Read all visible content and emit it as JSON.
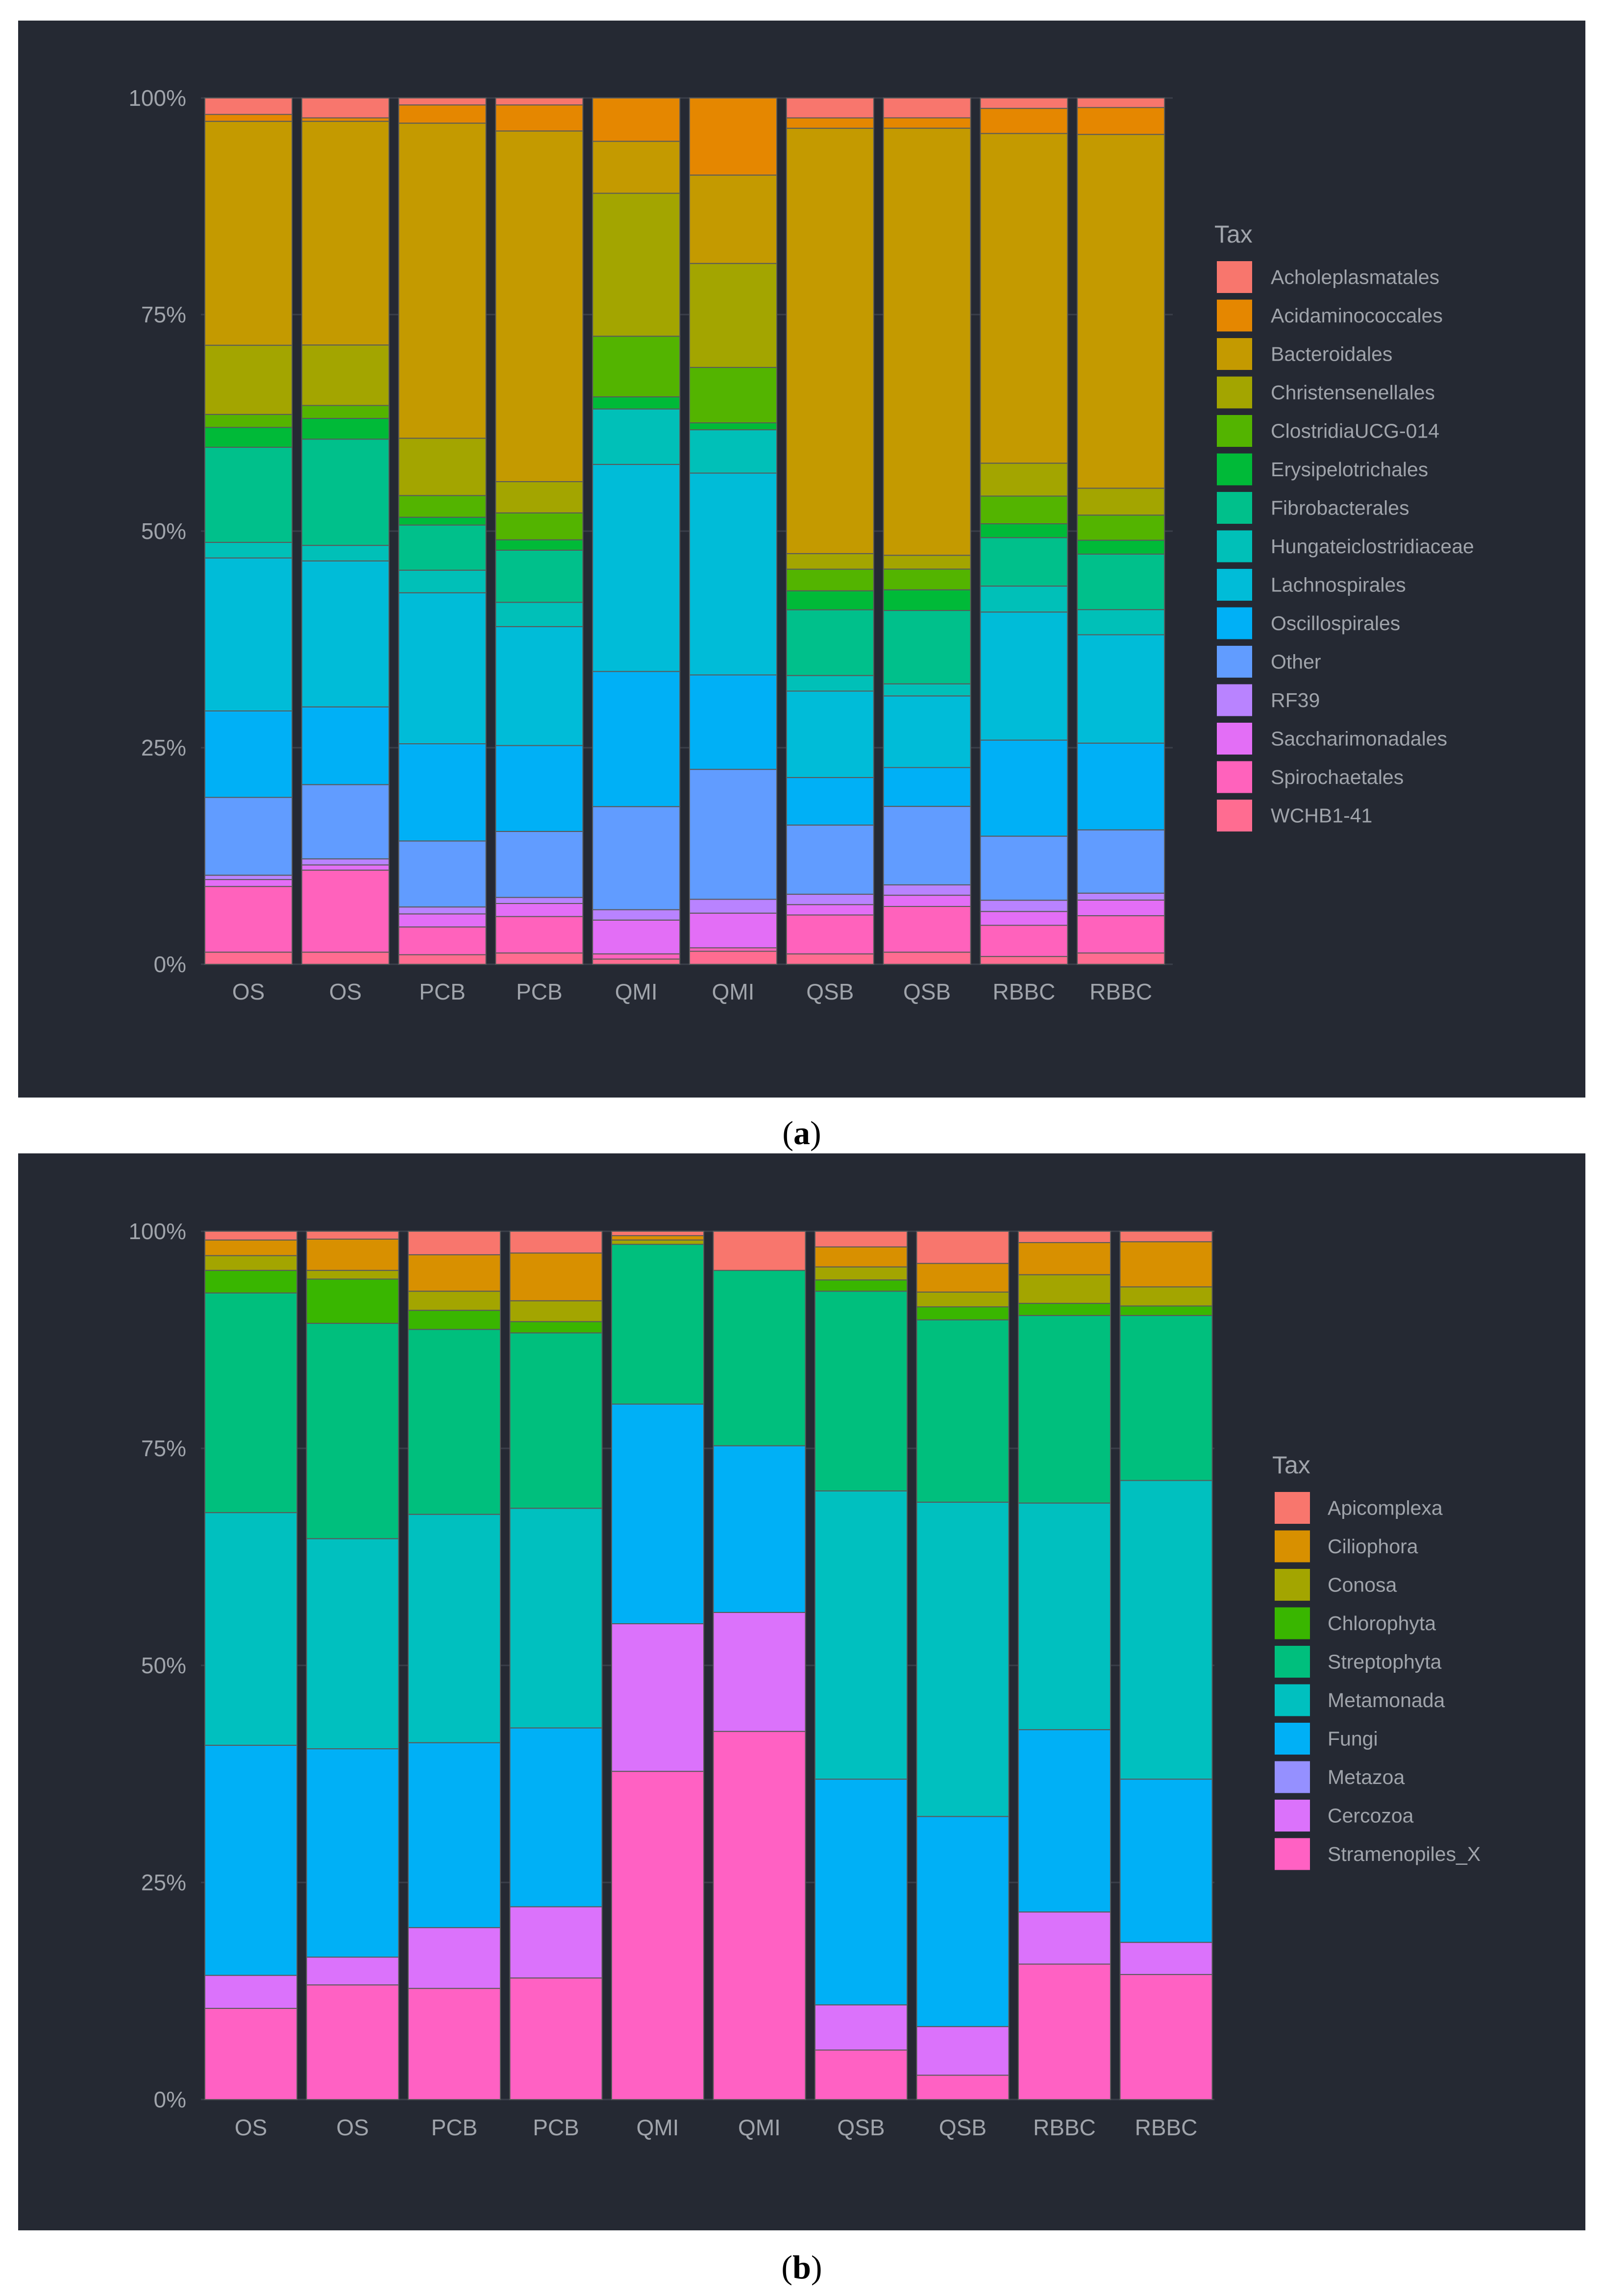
{
  "chart_data": [
    {
      "type": "bar",
      "stacked": true,
      "caption_open": "(",
      "caption_label": "a",
      "caption_close": ")",
      "categories": [
        "OS",
        "OS",
        "PCB",
        "PCB",
        "QMI",
        "QMI",
        "QSB",
        "QSB",
        "RBBC",
        "RBBC"
      ],
      "y_ticks": [
        "0%",
        "25%",
        "50%",
        "75%",
        "100%"
      ],
      "ylim": [
        0,
        100
      ],
      "legend_title": "Tax",
      "background": "#252933",
      "series": [
        {
          "name": "WCHB1-41",
          "color": "#FF6C91",
          "values": [
            1.4,
            1.4,
            1.1,
            1.3,
            0.6,
            1.5,
            1.2,
            1.4,
            0.9,
            1.3
          ]
        },
        {
          "name": "Spirochaetales",
          "color": "#FF62BC",
          "values": [
            7.6,
            9.5,
            3.2,
            4.2,
            0.6,
            0.4,
            4.5,
            5.3,
            3.6,
            4.3
          ]
        },
        {
          "name": "Saccharimonadales",
          "color": "#E36EF6",
          "values": [
            0.8,
            0.6,
            1.5,
            1.5,
            3.9,
            4.0,
            1.2,
            1.3,
            1.6,
            1.8
          ]
        },
        {
          "name": "RF39",
          "color": "#B983FF",
          "values": [
            0.5,
            0.7,
            0.8,
            0.7,
            1.2,
            1.6,
            1.2,
            1.2,
            1.3,
            0.8
          ]
        },
        {
          "name": "Other",
          "color": "#619CFF",
          "values": [
            9.0,
            8.6,
            7.6,
            7.6,
            11.9,
            15.0,
            8.0,
            9.1,
            7.4,
            7.3
          ]
        },
        {
          "name": "Oscillospirales",
          "color": "#00B0F6",
          "values": [
            10.0,
            9.0,
            11.2,
            9.9,
            15.6,
            10.9,
            5.5,
            4.5,
            11.1,
            10.0
          ]
        },
        {
          "name": "Lachnospirales",
          "color": "#00BCD8",
          "values": [
            17.7,
            16.9,
            17.4,
            13.7,
            23.9,
            23.3,
            10.0,
            8.3,
            14.8,
            12.5
          ]
        },
        {
          "name": "Hungateiclostridiaceae",
          "color": "#00C0B8",
          "values": [
            1.8,
            1.8,
            2.6,
            2.8,
            6.4,
            5.0,
            1.8,
            1.4,
            3.0,
            2.9
          ]
        },
        {
          "name": "Fibrobacterales",
          "color": "#00C08B",
          "values": [
            11.0,
            12.3,
            5.2,
            6.0,
            0,
            0,
            7.6,
            8.5,
            5.6,
            6.4
          ]
        },
        {
          "name": "Erysipelotrichales",
          "color": "#00BA38",
          "values": [
            2.3,
            2.4,
            0.9,
            1.2,
            1.4,
            0.8,
            2.2,
            2.4,
            1.6,
            1.6
          ]
        },
        {
          "name": "ClostridiaUCG-014",
          "color": "#53B400",
          "values": [
            1.5,
            1.5,
            2.5,
            3.1,
            7.0,
            6.4,
            2.5,
            2.4,
            3.2,
            2.9
          ]
        },
        {
          "name": "Christensenellales",
          "color": "#A3A500",
          "values": [
            8.0,
            7.0,
            6.6,
            3.6,
            16.5,
            12.0,
            1.8,
            1.6,
            3.8,
            3.1
          ]
        },
        {
          "name": "Bacteroidales",
          "color": "#C49A00",
          "values": [
            25.9,
            25.9,
            36.3,
            40.4,
            6.0,
            10.2,
            49.2,
            49.5,
            38.1,
            40.8
          ]
        },
        {
          "name": "Acidaminococcales",
          "color": "#E58700",
          "values": [
            0.8,
            0.4,
            2.1,
            3.0,
            5.0,
            8.9,
            1.2,
            1.2,
            2.9,
            3.1
          ]
        },
        {
          "name": "Acholeplasmatales",
          "color": "#F8766D",
          "values": [
            1.9,
            2.3,
            0.8,
            0.8,
            0,
            0,
            2.3,
            2.3,
            1.2,
            1.1
          ]
        }
      ]
    },
    {
      "type": "bar",
      "stacked": true,
      "caption_open": "(",
      "caption_label": "b",
      "caption_close": ")",
      "categories": [
        "OS",
        "OS",
        "PCB",
        "PCB",
        "QMI",
        "QMI",
        "QSB",
        "QSB",
        "RBBC",
        "RBBC"
      ],
      "y_ticks": [
        "0%",
        "25%",
        "50%",
        "75%",
        "100%"
      ],
      "ylim": [
        0,
        100
      ],
      "legend_title": "Tax",
      "background": "#252933",
      "series": [
        {
          "name": "Stramenopiles_X",
          "color": "#FF61C3",
          "values": [
            10.5,
            13.2,
            12.8,
            14.0,
            37.8,
            42.4,
            5.7,
            2.8,
            15.6,
            14.4
          ]
        },
        {
          "name": "Cercozoa",
          "color": "#DB72FB",
          "values": [
            3.8,
            3.2,
            7.0,
            8.2,
            17.0,
            13.7,
            5.2,
            5.6,
            6.0,
            3.7
          ]
        },
        {
          "name": "Metazoa",
          "color": "#9590FF",
          "values": [
            0,
            0,
            0,
            0,
            0,
            0,
            0,
            0,
            0,
            0
          ]
        },
        {
          "name": "Fungi",
          "color": "#00B0F6",
          "values": [
            26.5,
            24.0,
            21.3,
            20.6,
            25.3,
            19.2,
            26.0,
            24.2,
            21.0,
            18.8
          ]
        },
        {
          "name": "Metamonada",
          "color": "#00C0BF",
          "values": [
            26.8,
            24.2,
            26.3,
            25.3,
            0,
            0,
            33.2,
            36.2,
            26.1,
            34.4
          ]
        },
        {
          "name": "Streptophyta",
          "color": "#00BF7D",
          "values": [
            25.3,
            24.8,
            21.3,
            20.2,
            18.4,
            20.2,
            23.0,
            21.0,
            21.6,
            19.0
          ]
        },
        {
          "name": "Chlorophyta",
          "color": "#39B600",
          "values": [
            2.6,
            5.1,
            2.2,
            1.3,
            0,
            0,
            1.3,
            1.5,
            1.4,
            1.1
          ]
        },
        {
          "name": "Conosa",
          "color": "#A3A500",
          "values": [
            1.7,
            1.0,
            2.2,
            2.4,
            0.5,
            0,
            1.5,
            1.7,
            3.3,
            2.2
          ]
        },
        {
          "name": "Ciliophora",
          "color": "#D89000",
          "values": [
            1.8,
            3.6,
            4.2,
            5.5,
            0.5,
            0,
            2.3,
            3.3,
            3.7,
            5.2
          ]
        },
        {
          "name": "Apicomplexa",
          "color": "#F8766D",
          "values": [
            1.0,
            0.9,
            2.7,
            2.5,
            0.5,
            4.5,
            1.8,
            3.7,
            1.3,
            1.2
          ]
        }
      ]
    }
  ]
}
